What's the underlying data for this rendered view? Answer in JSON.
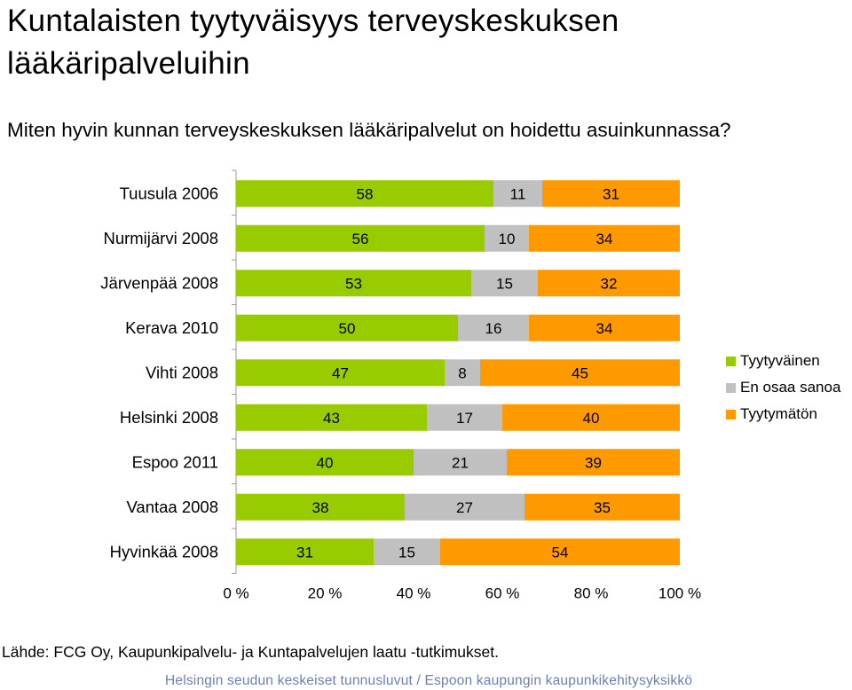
{
  "title_line1": "Kuntalaisten tyytyväisyys terveyskeskuksen",
  "title_line2": "lääkäripalveluihin",
  "subtitle": "Miten hyvin kunnan terveyskeskuksen lääkäripalvelut on hoidettu asuinkunnassa?",
  "source": "Lähde: FCG Oy, Kaupunkipalvelu- ja Kuntapalvelujen laatu -tutkimukset.",
  "footer": "Helsingin seudun keskeiset tunnusluvut / Espoon kaupungin kaupunkikehitysyksikkö",
  "chart_data": {
    "type": "bar",
    "orientation": "horizontal",
    "stacked": "percent",
    "categories": [
      "Tuusula 2006",
      "Nurmijärvi 2008",
      "Järvenpää 2008",
      "Kerava 2010",
      "Vihti 2008",
      "Helsinki 2008",
      "Espoo 2011",
      "Vantaa 2008",
      "Hyvinkää 2008"
    ],
    "series": [
      {
        "name": "Tyytyväinen",
        "color": "#99cc00",
        "values": [
          58,
          56,
          53,
          50,
          47,
          43,
          40,
          38,
          31
        ]
      },
      {
        "name": "En osaa sanoa",
        "color": "#c0c0c0",
        "values": [
          11,
          10,
          15,
          16,
          8,
          17,
          21,
          27,
          15
        ]
      },
      {
        "name": "Tyytymätön",
        "color": "#ff9900",
        "values": [
          31,
          34,
          32,
          34,
          45,
          40,
          39,
          35,
          54
        ]
      }
    ],
    "xticks": [
      "0 %",
      "20 %",
      "40 %",
      "60 %",
      "80 %",
      "100 %"
    ],
    "xlim": [
      0,
      100
    ],
    "grid": false,
    "legend_position": "right"
  }
}
